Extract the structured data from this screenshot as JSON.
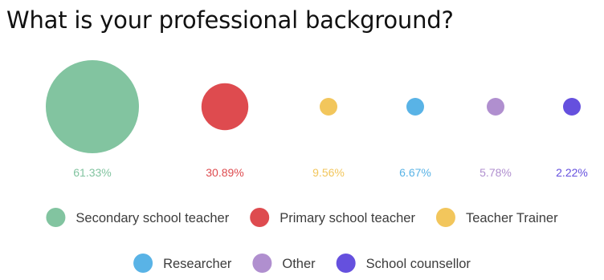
{
  "title": "What is your professional background?",
  "chart_data": {
    "type": "bubble",
    "title": "What is your professional background?",
    "categories": [
      "Secondary school teacher",
      "Primary school teacher",
      "Teacher Trainer",
      "Researcher",
      "Other",
      "School counsellor"
    ],
    "values": [
      61.33,
      30.89,
      9.56,
      6.67,
      5.78,
      2.22
    ],
    "value_labels": [
      "61.33%",
      "30.89%",
      "9.56%",
      "6.67%",
      "5.78%",
      "2.22%"
    ],
    "colors": [
      "#82c4a0",
      "#de4b4f",
      "#f2c65c",
      "#59b3e6",
      "#b08fcf",
      "#6550de"
    ],
    "legend_position": "bottom",
    "grid": false
  }
}
